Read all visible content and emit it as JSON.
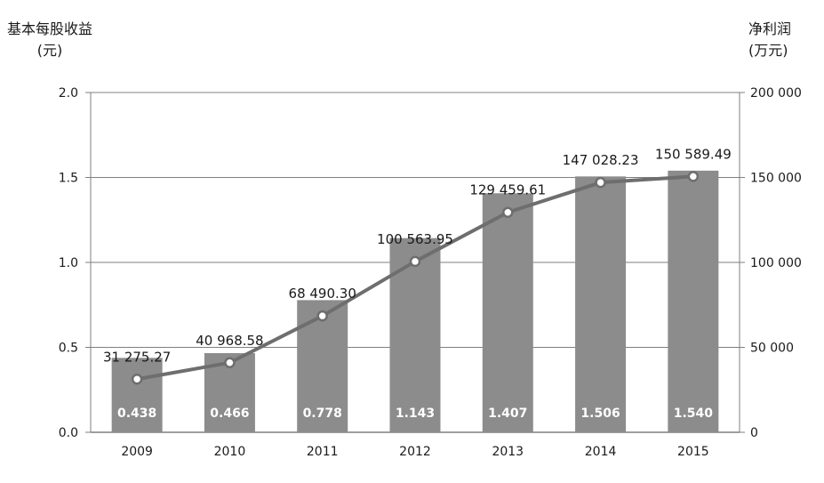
{
  "chart_data": {
    "type": "bar",
    "categories": [
      "2009",
      "2010",
      "2011",
      "2012",
      "2013",
      "2014",
      "2015"
    ],
    "y_left": {
      "label_line1": "基本每股收益",
      "label_line2": "(元)",
      "ylim": [
        0,
        2.0
      ],
      "ticks": [
        "0.0",
        "0.5",
        "1.0",
        "1.5",
        "2.0"
      ]
    },
    "y_right": {
      "label_line1": "净利润",
      "label_line2": "(万元)",
      "ylim": [
        0,
        200000
      ],
      "ticks": [
        "0",
        "50 000",
        "100 000",
        "150 000",
        "200 000"
      ]
    },
    "series": [
      {
        "type": "bar",
        "axis": "left",
        "values": [
          0.438,
          0.466,
          0.778,
          1.143,
          1.407,
          1.506,
          1.54
        ],
        "labels": [
          "0.438",
          "0.466",
          "0.778",
          "1.143",
          "1.407",
          "1.506",
          "1.540"
        ]
      },
      {
        "type": "line",
        "axis": "right",
        "values": [
          31275.27,
          40968.58,
          68490.3,
          100563.95,
          129459.61,
          147028.23,
          150589.49
        ],
        "labels": [
          "31 275.27",
          "40 968.58",
          "68 490.30",
          "100 563.95",
          "129 459.61",
          "147 028.23",
          "150 589.49"
        ]
      }
    ],
    "grid": true,
    "legend": "none",
    "colors": {
      "bar": "#8c8c8c",
      "line": "#6e6e6e",
      "grid": "#7f7f7f",
      "text": "#1a1a1a"
    }
  }
}
